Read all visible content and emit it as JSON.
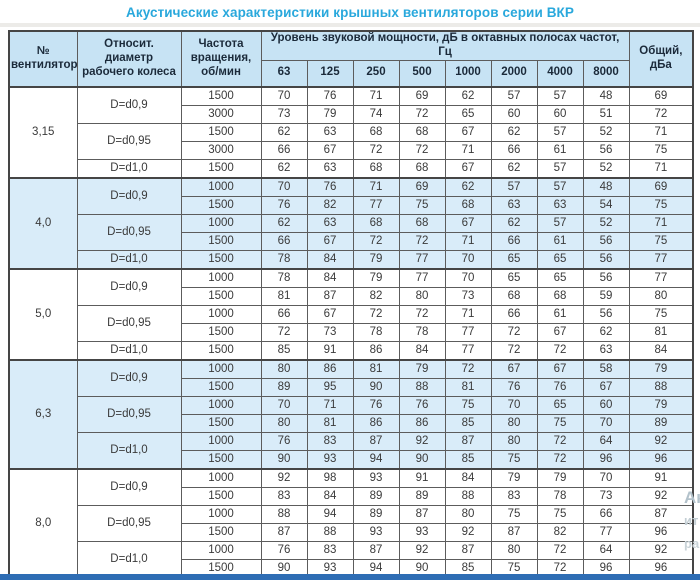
{
  "title": "Акустические характеристики крышных вентиляторов серии ВКР",
  "colors": {
    "title_color": "#29a8dc",
    "header_bg": "#c7e3f4",
    "band_bg": "#d9ecf9",
    "bottom_bar": "#2e6db4"
  },
  "watermark": [
    "Ак",
    "ит",
    "ра"
  ],
  "table": {
    "headers": {
      "fan": "№ вентилятора",
      "diameter": "Относит. диаметр рабочего колеса",
      "rpm": "Частота вращения, об/мин",
      "spl_group": "Уровень звуковой мощности, дБ в октавных полосах частот, Гц",
      "total": "Общий, дБа"
    },
    "frequencies": [
      "63",
      "125",
      "250",
      "500",
      "1000",
      "2000",
      "4000",
      "8000"
    ],
    "blocks": [
      {
        "fan": "3,15",
        "tint": false,
        "groups": [
          {
            "diameter": "D=d0,9",
            "rows": [
              {
                "rpm": "1500",
                "levels": [
                  70,
                  76,
                  71,
                  69,
                  62,
                  57,
                  57,
                  48
                ],
                "total": 69
              },
              {
                "rpm": "3000",
                "levels": [
                  73,
                  79,
                  74,
                  72,
                  65,
                  60,
                  60,
                  51
                ],
                "total": 72
              }
            ]
          },
          {
            "diameter": "D=d0,95",
            "rows": [
              {
                "rpm": "1500",
                "levels": [
                  62,
                  63,
                  68,
                  68,
                  67,
                  62,
                  57,
                  52
                ],
                "total": 71
              },
              {
                "rpm": "3000",
                "levels": [
                  66,
                  67,
                  72,
                  72,
                  71,
                  66,
                  61,
                  56
                ],
                "total": 75
              }
            ]
          },
          {
            "diameter": "D=d1,0",
            "rows": [
              {
                "rpm": "1500",
                "levels": [
                  62,
                  63,
                  68,
                  68,
                  67,
                  62,
                  57,
                  52
                ],
                "total": 71
              }
            ]
          }
        ]
      },
      {
        "fan": "4,0",
        "tint": true,
        "groups": [
          {
            "diameter": "D=d0,9",
            "rows": [
              {
                "rpm": "1000",
                "levels": [
                  70,
                  76,
                  71,
                  69,
                  62,
                  57,
                  57,
                  48
                ],
                "total": 69
              },
              {
                "rpm": "1500",
                "levels": [
                  76,
                  82,
                  77,
                  75,
                  68,
                  63,
                  63,
                  54
                ],
                "total": 75
              }
            ]
          },
          {
            "diameter": "D=d0,95",
            "rows": [
              {
                "rpm": "1000",
                "levels": [
                  62,
                  63,
                  68,
                  68,
                  67,
                  62,
                  57,
                  52
                ],
                "total": 71
              },
              {
                "rpm": "1500",
                "levels": [
                  66,
                  67,
                  72,
                  72,
                  71,
                  66,
                  61,
                  56
                ],
                "total": 75
              }
            ]
          },
          {
            "diameter": "D=d1,0",
            "rows": [
              {
                "rpm": "1500",
                "levels": [
                  78,
                  84,
                  79,
                  77,
                  70,
                  65,
                  65,
                  56
                ],
                "total": 77
              }
            ]
          }
        ]
      },
      {
        "fan": "5,0",
        "tint": false,
        "groups": [
          {
            "diameter": "D=d0,9",
            "rows": [
              {
                "rpm": "1000",
                "levels": [
                  78,
                  84,
                  79,
                  77,
                  70,
                  65,
                  65,
                  56
                ],
                "total": 77
              },
              {
                "rpm": "1500",
                "levels": [
                  81,
                  87,
                  82,
                  80,
                  73,
                  68,
                  68,
                  59
                ],
                "total": 80
              }
            ]
          },
          {
            "diameter": "D=d0,95",
            "rows": [
              {
                "rpm": "1000",
                "levels": [
                  66,
                  67,
                  72,
                  72,
                  71,
                  66,
                  61,
                  56
                ],
                "total": 75
              },
              {
                "rpm": "1500",
                "levels": [
                  72,
                  73,
                  78,
                  78,
                  77,
                  72,
                  67,
                  62
                ],
                "total": 81
              }
            ]
          },
          {
            "diameter": "D=d1,0",
            "rows": [
              {
                "rpm": "1500",
                "levels": [
                  85,
                  91,
                  86,
                  84,
                  77,
                  72,
                  72,
                  63
                ],
                "total": 84
              }
            ]
          }
        ]
      },
      {
        "fan": "6,3",
        "tint": true,
        "groups": [
          {
            "diameter": "D=d0,9",
            "rows": [
              {
                "rpm": "1000",
                "levels": [
                  80,
                  86,
                  81,
                  79,
                  72,
                  67,
                  67,
                  58
                ],
                "total": 79
              },
              {
                "rpm": "1500",
                "levels": [
                  89,
                  95,
                  90,
                  88,
                  81,
                  76,
                  76,
                  67
                ],
                "total": 88
              }
            ]
          },
          {
            "diameter": "D=d0,95",
            "rows": [
              {
                "rpm": "1000",
                "levels": [
                  70,
                  71,
                  76,
                  76,
                  75,
                  70,
                  65,
                  60
                ],
                "total": 79
              },
              {
                "rpm": "1500",
                "levels": [
                  80,
                  81,
                  86,
                  86,
                  85,
                  80,
                  75,
                  70
                ],
                "total": 89
              }
            ]
          },
          {
            "diameter": "D=d1,0",
            "rows": [
              {
                "rpm": "1000",
                "levels": [
                  76,
                  83,
                  87,
                  92,
                  87,
                  80,
                  72,
                  64
                ],
                "total": 92
              },
              {
                "rpm": "1500",
                "levels": [
                  90,
                  93,
                  94,
                  90,
                  85,
                  75,
                  72,
                  96
                ],
                "total": 96
              }
            ]
          }
        ]
      },
      {
        "fan": "8,0",
        "tint": false,
        "groups": [
          {
            "diameter": "D=d0,9",
            "rows": [
              {
                "rpm": "1000",
                "levels": [
                  92,
                  98,
                  93,
                  91,
                  84,
                  79,
                  79,
                  70
                ],
                "total": 91
              },
              {
                "rpm": "1500",
                "levels": [
                  83,
                  84,
                  89,
                  89,
                  88,
                  83,
                  78,
                  73
                ],
                "total": 92
              }
            ]
          },
          {
            "diameter": "D=d0,95",
            "rows": [
              {
                "rpm": "1000",
                "levels": [
                  88,
                  94,
                  89,
                  87,
                  80,
                  75,
                  75,
                  66
                ],
                "total": 87
              },
              {
                "rpm": "1500",
                "levels": [
                  87,
                  88,
                  93,
                  93,
                  92,
                  87,
                  82,
                  77
                ],
                "total": 96
              }
            ]
          },
          {
            "diameter": "D=d1,0",
            "rows": [
              {
                "rpm": "1000",
                "levels": [
                  76,
                  83,
                  87,
                  92,
                  87,
                  80,
                  72,
                  64
                ],
                "total": 92
              },
              {
                "rpm": "1500",
                "levels": [
                  90,
                  93,
                  94,
                  90,
                  85,
                  75,
                  72,
                  96
                ],
                "total": 96
              }
            ]
          }
        ]
      }
    ]
  }
}
